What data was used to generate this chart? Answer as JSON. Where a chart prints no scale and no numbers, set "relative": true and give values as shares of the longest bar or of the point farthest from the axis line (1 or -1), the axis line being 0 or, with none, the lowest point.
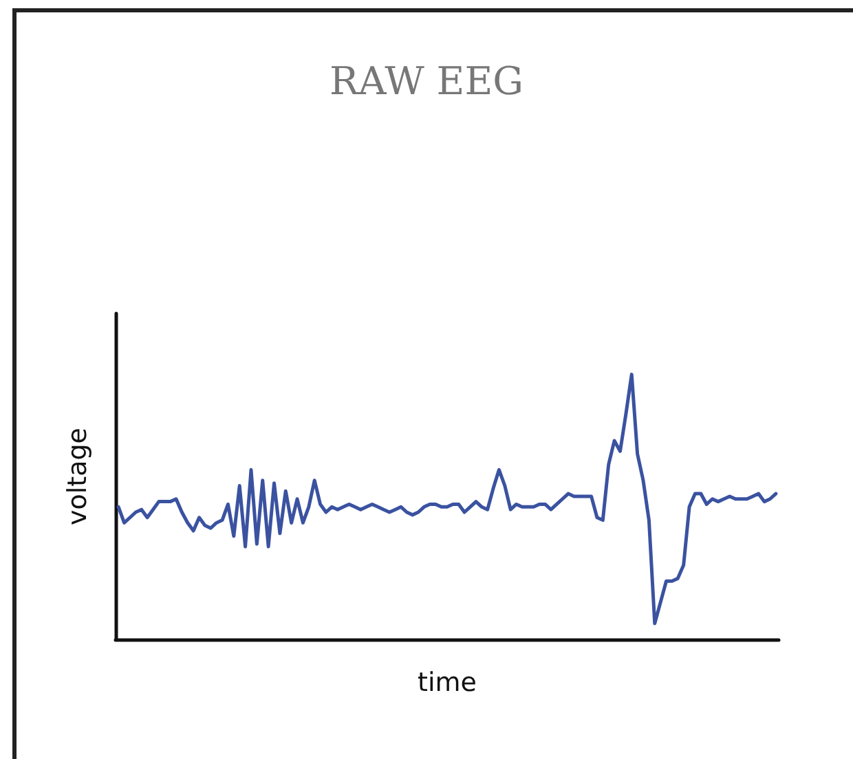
{
  "chart_data": {
    "type": "line",
    "title": "RAW EEG",
    "xlabel": "time",
    "ylabel": "voltage",
    "relative": true,
    "grid": false,
    "marker": "none",
    "line_style": "solid",
    "categories": [
      null,
      null,
      null,
      null,
      null,
      null,
      null,
      null,
      null,
      null,
      null,
      null,
      null,
      null,
      null,
      null,
      null,
      null,
      null,
      null,
      null,
      null,
      null,
      null,
      null,
      null,
      null,
      null,
      null,
      null,
      null,
      null,
      null,
      null,
      null,
      null,
      null,
      null,
      null,
      null,
      null,
      null,
      null,
      null,
      null,
      null,
      null,
      null,
      null,
      null,
      null,
      null,
      null,
      null,
      null,
      null,
      null,
      null,
      null,
      null,
      null,
      null,
      null,
      null,
      null,
      null,
      null,
      null,
      null,
      null,
      null,
      null,
      null,
      null,
      null,
      null,
      null,
      null,
      null,
      null,
      null,
      null,
      null,
      null,
      null,
      null,
      null,
      null,
      null,
      null,
      null,
      null,
      null,
      null,
      null,
      null,
      null,
      null,
      null,
      null,
      null,
      null,
      null,
      null,
      null,
      null,
      null,
      null,
      null,
      null,
      null,
      null,
      null,
      null,
      null
    ],
    "series": [
      {
        "color": "#3a52a0",
        "values": [
          0.5,
          0.44,
          0.46,
          0.48,
          0.49,
          0.46,
          0.49,
          0.52,
          0.52,
          0.52,
          0.53,
          0.48,
          0.44,
          0.41,
          0.46,
          0.43,
          0.42,
          0.44,
          0.45,
          0.51,
          0.39,
          0.58,
          0.35,
          0.64,
          0.36,
          0.6,
          0.35,
          0.59,
          0.4,
          0.56,
          0.44,
          0.53,
          0.44,
          0.5,
          0.6,
          0.51,
          0.48,
          0.5,
          0.49,
          0.5,
          0.51,
          0.5,
          0.49,
          0.5,
          0.51,
          0.5,
          0.49,
          0.48,
          0.49,
          0.5,
          0.48,
          0.47,
          0.48,
          0.5,
          0.51,
          0.51,
          0.5,
          0.5,
          0.51,
          0.51,
          0.48,
          0.5,
          0.52,
          0.5,
          0.49,
          0.57,
          0.64,
          0.58,
          0.49,
          0.51,
          0.5,
          0.5,
          0.5,
          0.51,
          0.51,
          0.49,
          0.51,
          0.53,
          0.55,
          0.54,
          0.54,
          0.54,
          0.54,
          0.46,
          0.45,
          0.66,
          0.75,
          0.71,
          0.85,
          1,
          0.7,
          0.6,
          0.45,
          0.06,
          0.14,
          0.22,
          0.22,
          0.23,
          0.28,
          0.5,
          0.55,
          0.55,
          0.51,
          0.53,
          0.52,
          0.53,
          0.54,
          0.53,
          0.53,
          0.53,
          0.54,
          0.55,
          0.52,
          0.53,
          0.55
        ]
      }
    ]
  }
}
